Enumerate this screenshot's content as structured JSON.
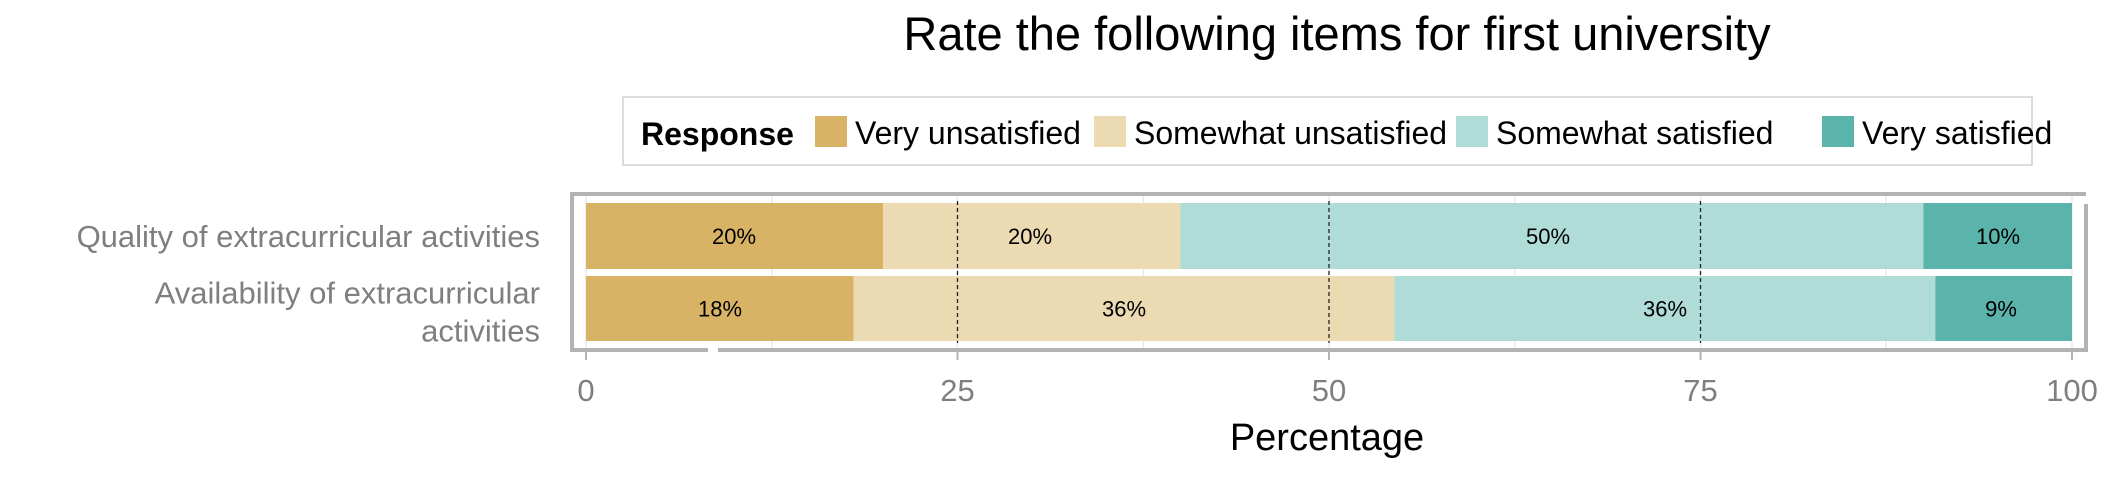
{
  "chart_data": {
    "type": "bar",
    "orientation": "horizontal",
    "stacked": true,
    "title": "Rate the following items for first university",
    "xlabel": "Percentage",
    "ylabel": "",
    "xlim": [
      0,
      100
    ],
    "xticks": [
      "0",
      "25",
      "50",
      "75",
      "100"
    ],
    "legend": {
      "title": "Response",
      "position": "top",
      "entries": [
        "Very unsatisfied",
        "Somewhat unsatisfied",
        "Somewhat satisfied",
        "Very satisfied"
      ]
    },
    "colors": [
      "#D8B365",
      "#EBDAB2",
      "#B0DCD7",
      "#5AB4AC"
    ],
    "categories": [
      "Quality of extracurricular activities",
      "Availability of extracurricular activities"
    ],
    "series": [
      {
        "name": "Very unsatisfied",
        "values": [
          20,
          18
        ],
        "labels": [
          "20%",
          "18%"
        ]
      },
      {
        "name": "Somewhat unsatisfied",
        "values": [
          20,
          36.4
        ],
        "labels": [
          "20%",
          "36%"
        ]
      },
      {
        "name": "Somewhat satisfied",
        "values": [
          50,
          36.4
        ],
        "labels": [
          "50%",
          "36%"
        ]
      },
      {
        "name": "Very satisfied",
        "values": [
          10,
          9.2
        ],
        "labels": [
          "10%",
          "9%"
        ]
      }
    ],
    "grid": true,
    "reference_lines": [
      25,
      50,
      75
    ]
  }
}
